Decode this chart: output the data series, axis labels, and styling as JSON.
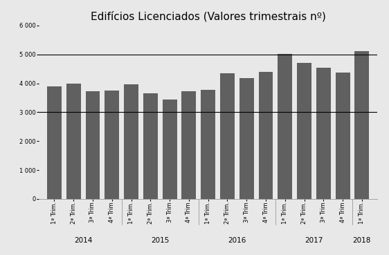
{
  "title": "Edifícios Licenciados (Valores trimestrais nº)",
  "bar_color": "#606060",
  "background_color": "#e8e8e8",
  "plot_bg_color": "#e8e8e8",
  "values": [
    3900,
    4000,
    3720,
    3740,
    3960,
    3660,
    3450,
    3720,
    3780,
    4350,
    4180,
    4400,
    5020,
    4700,
    4530,
    4370,
    5120
  ],
  "categories": [
    "1ª Trim.",
    "2ª Trim.",
    "3ª Trim",
    "4ª Trim",
    "1ª Trim.",
    "2ª Trim.",
    "3ª Trim",
    "4ª Trim",
    "1ª Trim.",
    "2ª Trim.",
    "3ª Trim",
    "4ª Trim",
    "1ª Trim.",
    "2ª Trim.",
    "3ª Trim",
    "4ª Trim",
    "1ª Trim."
  ],
  "year_labels": [
    "2014",
    "2015",
    "2016",
    "2017",
    "2018"
  ],
  "year_centers": [
    2.5,
    6.5,
    10.5,
    14.5,
    17
  ],
  "group_boundaries": [
    4.5,
    8.5,
    12.5,
    16.5
  ],
  "ylim": [
    0,
    6000
  ],
  "yticks": [
    0,
    1000,
    2000,
    3000,
    4000,
    5000,
    6000
  ],
  "ytick_labels": [
    "0",
    "1 000",
    "2 000",
    "3 000",
    "4 000",
    "5 000",
    "6 000"
  ],
  "hlines": [
    3000,
    5000
  ],
  "title_fontsize": 11,
  "tick_fontsize": 6,
  "year_fontsize": 7.5
}
